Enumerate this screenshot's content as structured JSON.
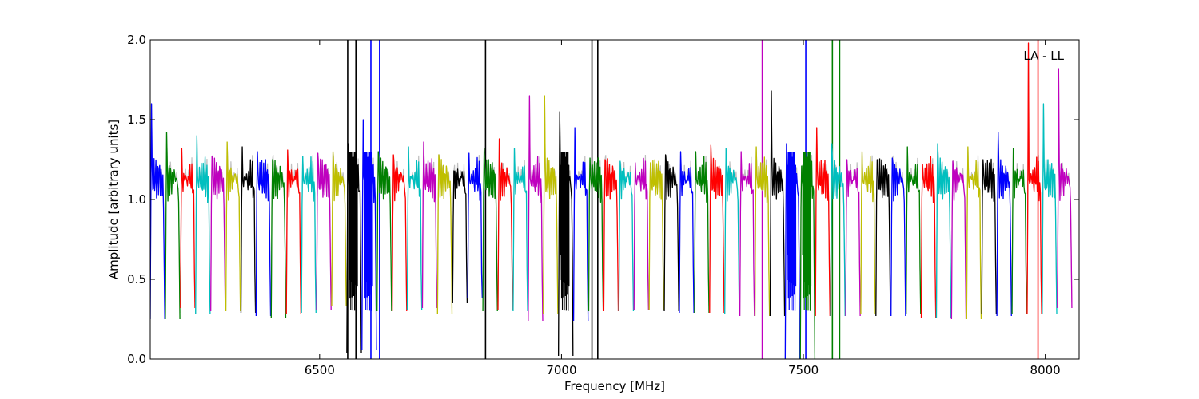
{
  "chart_data": {
    "type": "line",
    "title": "",
    "xlabel": "Frequency [MHz]",
    "ylabel": "Amplitude [arbitrary units]",
    "xlim": [
      6150,
      8070
    ],
    "ylim": [
      0.0,
      2.0
    ],
    "grid": false,
    "annotation": "LA - LL",
    "annotation_position": "top-right",
    "x_ticks": [
      {
        "value": 6500,
        "label": "6500"
      },
      {
        "value": 7000,
        "label": "7000"
      },
      {
        "value": 7500,
        "label": "7500"
      },
      {
        "value": 8000,
        "label": "8000"
      }
    ],
    "y_ticks": [
      {
        "value": 0.0,
        "label": "0.0"
      },
      {
        "value": 0.5,
        "label": "0.5"
      },
      {
        "value": 1.0,
        "label": "1.0"
      },
      {
        "value": 1.5,
        "label": "1.5"
      },
      {
        "value": 2.0,
        "label": "2.0"
      }
    ],
    "color_cycle": [
      "#0000ff",
      "#008000",
      "#ff0000",
      "#00bfbf",
      "#bf00bf",
      "#bfbf00",
      "#000000"
    ],
    "background_trace_color": "#c0c0c0",
    "start_frequency": 6150,
    "channel_width": 31.25,
    "channel_count": 61,
    "samples_per_channel": 24,
    "base_profile": [
      0.3,
      0.95,
      1.1,
      1.18,
      1.05,
      1.12,
      1.2,
      1.08,
      1.14,
      1.19,
      1.06,
      1.11,
      1.17,
      1.09,
      1.15,
      1.21,
      1.07,
      1.13,
      1.18,
      1.04,
      1.1,
      1.0,
      0.6,
      0.28
    ],
    "channels": [
      {
        "peak": 1.6,
        "dip": 0.25
      },
      {
        "peak": 1.42,
        "dip": 0.25
      },
      {
        "peak": 1.32,
        "dip": 0.32
      },
      {
        "peak": 1.4,
        "dip": 0.28
      },
      {
        "peak": 1.27,
        "dip": 0.3
      },
      {
        "peak": 1.36,
        "dip": 0.3
      },
      {
        "peak": 1.33,
        "dip": 0.29
      },
      {
        "peak": 1.3,
        "dip": 0.27
      },
      {
        "peak": 1.25,
        "dip": 0.26
      },
      {
        "peak": 1.31,
        "dip": 0.28
      },
      {
        "peak": 1.27,
        "dip": 0.29
      },
      {
        "peak": 1.29,
        "dip": 0.31
      },
      {
        "peak": 1.3,
        "dip": 0.33
      },
      {
        "peak": 1.35,
        "dip": 0.04,
        "spikes": [
          {
            "x": 6558,
            "y": 2.0
          },
          {
            "x": 6575,
            "y": 2.0
          }
        ]
      },
      {
        "peak": 1.5,
        "dip": 0.06,
        "spikes": [
          {
            "x": 6606,
            "y": 2.0
          },
          {
            "x": 6624,
            "y": 2.0
          }
        ]
      },
      {
        "peak": 1.3,
        "dip": 0.3
      },
      {
        "peak": 1.28,
        "dip": 0.3
      },
      {
        "peak": 1.33,
        "dip": 0.31
      },
      {
        "peak": 1.36,
        "dip": 0.32
      },
      {
        "peak": 1.28,
        "dip": 0.28
      },
      {
        "peak": 1.18,
        "dip": 0.35,
        "spikes": [
          {
            "x": 6843,
            "y": 2.0
          }
        ]
      },
      {
        "peak": 1.29,
        "dip": 0.38
      },
      {
        "peak": 1.32,
        "dip": 0.3
      },
      {
        "peak": 1.38,
        "dip": 0.31
      },
      {
        "peak": 1.32,
        "dip": 0.3
      },
      {
        "peak": 1.65,
        "dip": 0.24
      },
      {
        "peak": 1.65,
        "dip": 0.28
      },
      {
        "peak": 1.55,
        "dip": 0.02,
        "spikes": [
          {
            "x": 7063,
            "y": 2.0
          },
          {
            "x": 7075,
            "y": 2.0
          }
        ]
      },
      {
        "peak": 1.45,
        "dip": 0.24
      },
      {
        "peak": 1.26,
        "dip": 0.3
      },
      {
        "peak": 1.25,
        "dip": 0.3
      },
      {
        "peak": 1.24,
        "dip": 0.3
      },
      {
        "peak": 1.23,
        "dip": 0.31
      },
      {
        "peak": 1.23,
        "dip": 0.31
      },
      {
        "peak": 1.28,
        "dip": 0.3
      },
      {
        "peak": 1.3,
        "dip": 0.29
      },
      {
        "peak": 1.3,
        "dip": 0.29
      },
      {
        "peak": 1.34,
        "dip": 0.29
      },
      {
        "peak": 1.32,
        "dip": 0.28
      },
      {
        "peak": 1.3,
        "dip": 0.27,
        "spikes": [
          {
            "x": 7415,
            "y": 2.0
          }
        ]
      },
      {
        "peak": 1.33,
        "dip": 0.27
      },
      {
        "peak": 1.68,
        "dip": 0.27
      },
      {
        "peak": 1.35,
        "dip": 0.0,
        "spikes": [
          {
            "x": 7505,
            "y": 2.0
          }
        ]
      },
      {
        "peak": 1.21,
        "dip": 0.0,
        "spikes": [
          {
            "x": 7560,
            "y": 2.0
          },
          {
            "x": 7575,
            "y": 2.0
          }
        ]
      },
      {
        "peak": 1.45,
        "dip": 0.27
      },
      {
        "peak": 1.35,
        "dip": 0.27
      },
      {
        "peak": 1.25,
        "dip": 0.27
      },
      {
        "peak": 1.3,
        "dip": 0.28
      },
      {
        "peak": 1.25,
        "dip": 0.27
      },
      {
        "peak": 1.26,
        "dip": 0.27
      },
      {
        "peak": 1.33,
        "dip": 0.28
      },
      {
        "peak": 1.22,
        "dip": 0.26
      },
      {
        "peak": 1.35,
        "dip": 0.26
      },
      {
        "peak": 1.24,
        "dip": 0.25
      },
      {
        "peak": 1.33,
        "dip": 0.25
      },
      {
        "peak": 1.25,
        "dip": 0.28
      },
      {
        "peak": 1.42,
        "dip": 0.27
      },
      {
        "peak": 1.32,
        "dip": 0.28
      },
      {
        "peak": 1.98,
        "dip": 0.28,
        "spikes": [
          {
            "x": 7985,
            "y": 2.0
          }
        ]
      },
      {
        "peak": 1.6,
        "dip": 0.28
      },
      {
        "peak": 1.82,
        "dip": 0.32
      }
    ]
  }
}
